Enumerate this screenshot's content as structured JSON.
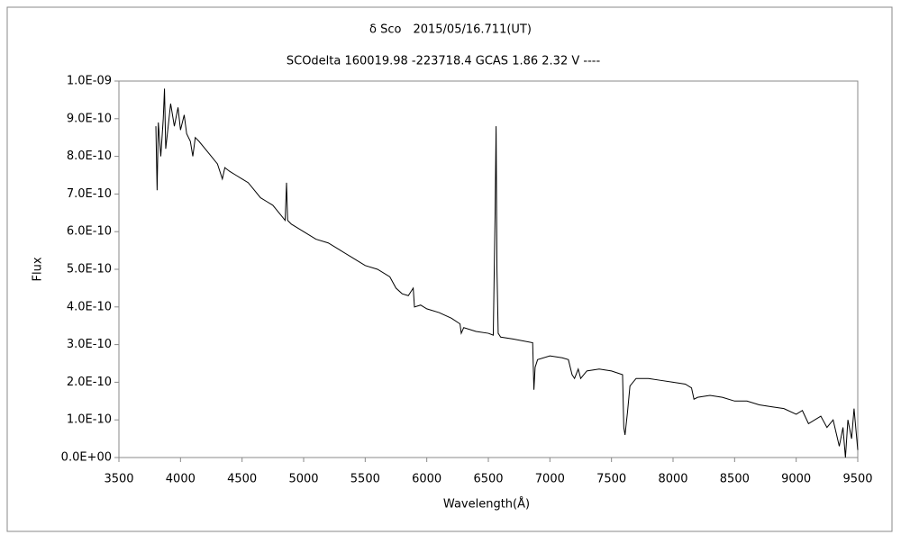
{
  "chart_data": {
    "type": "line",
    "title": "δ Sco　2015/05/16.711(UT)",
    "subtitle": "SCOdelta 160019.98 -223718.4 GCAS 1.86 2.32 V ----",
    "x_label": "Wavelength(Å)",
    "y_label": "Flux",
    "xlim": [
      3500,
      9500
    ],
    "xticks": [
      3500,
      4000,
      4500,
      5000,
      5500,
      6000,
      6500,
      7000,
      7500,
      8000,
      8500,
      9000,
      9500
    ],
    "ylim": [
      0,
      1e-09
    ],
    "yticks": [
      {
        "value": 0,
        "label": "0.0E+00"
      },
      {
        "value": 1e-10,
        "label": "1.0E-10"
      },
      {
        "value": 2e-10,
        "label": "2.0E-10"
      },
      {
        "value": 3e-10,
        "label": "3.0E-10"
      },
      {
        "value": 4e-10,
        "label": "4.0E-10"
      },
      {
        "value": 5e-10,
        "label": "5.0E-10"
      },
      {
        "value": 6e-10,
        "label": "6.0E-10"
      },
      {
        "value": 7e-10,
        "label": "7.0E-10"
      },
      {
        "value": 8e-10,
        "label": "8.0E-10"
      },
      {
        "value": 9e-10,
        "label": "9.0E-10"
      },
      {
        "value": 1e-09,
        "label": "1.0E-09"
      }
    ],
    "grid": false,
    "color": "#000000",
    "x": [
      3800,
      3810,
      3820,
      3840,
      3860,
      3870,
      3880,
      3900,
      3920,
      3950,
      3980,
      4000,
      4030,
      4050,
      4080,
      4100,
      4120,
      4150,
      4200,
      4250,
      4300,
      4340,
      4360,
      4400,
      4450,
      4500,
      4550,
      4600,
      4650,
      4700,
      4750,
      4800,
      4850,
      4861,
      4870,
      4900,
      5000,
      5100,
      5200,
      5300,
      5400,
      5500,
      5600,
      5700,
      5750,
      5800,
      5850,
      5890,
      5900,
      5950,
      6000,
      6100,
      6200,
      6270,
      6280,
      6300,
      6400,
      6500,
      6540,
      6555,
      6563,
      6570,
      6580,
      6600,
      6700,
      6860,
      6870,
      6880,
      6900,
      7000,
      7100,
      7150,
      7180,
      7200,
      7230,
      7250,
      7300,
      7400,
      7500,
      7590,
      7600,
      7610,
      7630,
      7650,
      7700,
      7800,
      7900,
      8000,
      8100,
      8150,
      8170,
      8200,
      8300,
      8400,
      8500,
      8600,
      8700,
      8800,
      8900,
      9000,
      9050,
      9100,
      9200,
      9250,
      9300,
      9350,
      9380,
      9400,
      9420,
      9450,
      9470,
      9500
    ],
    "values": [
      8.8e-10,
      7.1e-10,
      8.9e-10,
      8e-10,
      9e-10,
      9.8e-10,
      8.2e-10,
      8.8e-10,
      9.4e-10,
      8.8e-10,
      9.3e-10,
      8.7e-10,
      9.1e-10,
      8.6e-10,
      8.4e-10,
      8e-10,
      8.5e-10,
      8.4e-10,
      8.2e-10,
      8e-10,
      7.8e-10,
      7.4e-10,
      7.7e-10,
      7.6e-10,
      7.5e-10,
      7.4e-10,
      7.3e-10,
      7.1e-10,
      6.9e-10,
      6.8e-10,
      6.7e-10,
      6.5e-10,
      6.3e-10,
      7.3e-10,
      6.3e-10,
      6.2e-10,
      6e-10,
      5.8e-10,
      5.7e-10,
      5.5e-10,
      5.3e-10,
      5.1e-10,
      5e-10,
      4.8e-10,
      4.5e-10,
      4.35e-10,
      4.3e-10,
      4.5e-10,
      4e-10,
      4.05e-10,
      3.95e-10,
      3.85e-10,
      3.7e-10,
      3.55e-10,
      3.3e-10,
      3.45e-10,
      3.35e-10,
      3.3e-10,
      3.25e-10,
      6.5e-10,
      8.8e-10,
      5e-10,
      3.3e-10,
      3.2e-10,
      3.15e-10,
      3.05e-10,
      1.8e-10,
      2.4e-10,
      2.6e-10,
      2.7e-10,
      2.65e-10,
      2.6e-10,
      2.2e-10,
      2.1e-10,
      2.35e-10,
      2.1e-10,
      2.3e-10,
      2.35e-10,
      2.3e-10,
      2.2e-10,
      8e-11,
      6e-11,
      1.2e-10,
      1.9e-10,
      2.1e-10,
      2.1e-10,
      2.05e-10,
      2e-10,
      1.95e-10,
      1.85e-10,
      1.55e-10,
      1.6e-10,
      1.65e-10,
      1.6e-10,
      1.5e-10,
      1.5e-10,
      1.4e-10,
      1.35e-10,
      1.3e-10,
      1.15e-10,
      1.25e-10,
      9e-11,
      1.1e-10,
      8e-11,
      1e-10,
      3e-11,
      8e-11,
      0,
      1e-10,
      5e-11,
      1.3e-10,
      2e-11
    ]
  }
}
